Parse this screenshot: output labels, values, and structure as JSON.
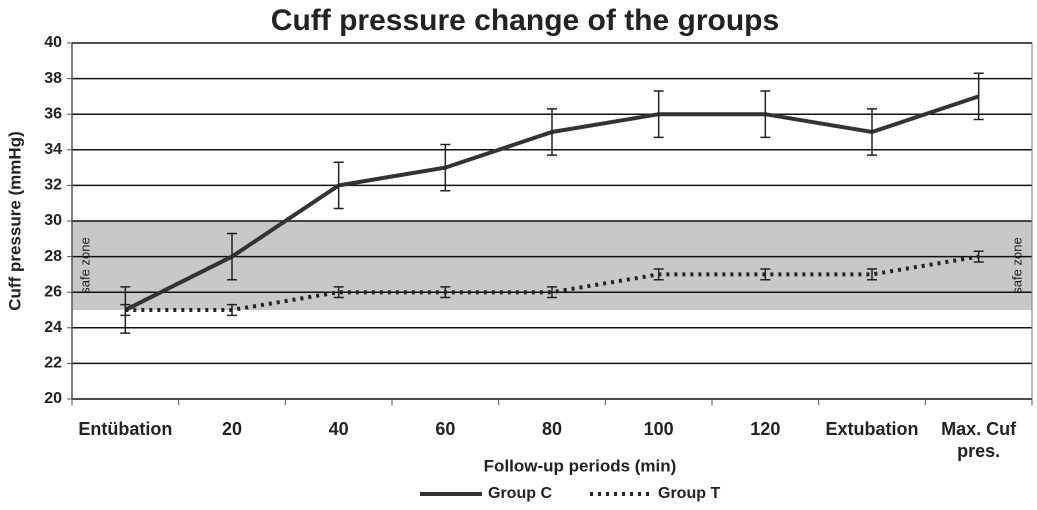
{
  "chart_data": {
    "type": "line",
    "title": "Cuff pressure change of the groups",
    "x_label": "Follow-up periods (min)",
    "y_label": "Cuff pressure (mmHg)",
    "categories": [
      "Entübation",
      "20",
      "40",
      "60",
      "80",
      "100",
      "120",
      "Extubation",
      "Max. Cuf pres."
    ],
    "series": [
      {
        "name": "Group C",
        "color": "#333333",
        "style": "solid",
        "values": [
          25,
          28,
          32,
          33,
          35,
          36,
          36,
          35,
          37
        ],
        "errors": [
          1.3,
          1.3,
          1.3,
          1.3,
          1.3,
          1.3,
          1.3,
          1.3,
          1.3
        ]
      },
      {
        "name": "Group T",
        "color": "#222222",
        "style": "dotted",
        "values": [
          25,
          25,
          26,
          26,
          26,
          27,
          27,
          27,
          28
        ],
        "errors": [
          0.3,
          0.3,
          0.3,
          0.3,
          0.3,
          0.3,
          0.3,
          0.3,
          0.3
        ]
      }
    ],
    "ylim": [
      20,
      40
    ],
    "yticks": [
      20,
      22,
      24,
      26,
      28,
      30,
      32,
      34,
      36,
      38,
      40
    ],
    "grid": true,
    "safe_zone": {
      "range": [
        25,
        30
      ],
      "label": "safe zone",
      "color": "#c8c8c8"
    },
    "legend": "bottom"
  }
}
